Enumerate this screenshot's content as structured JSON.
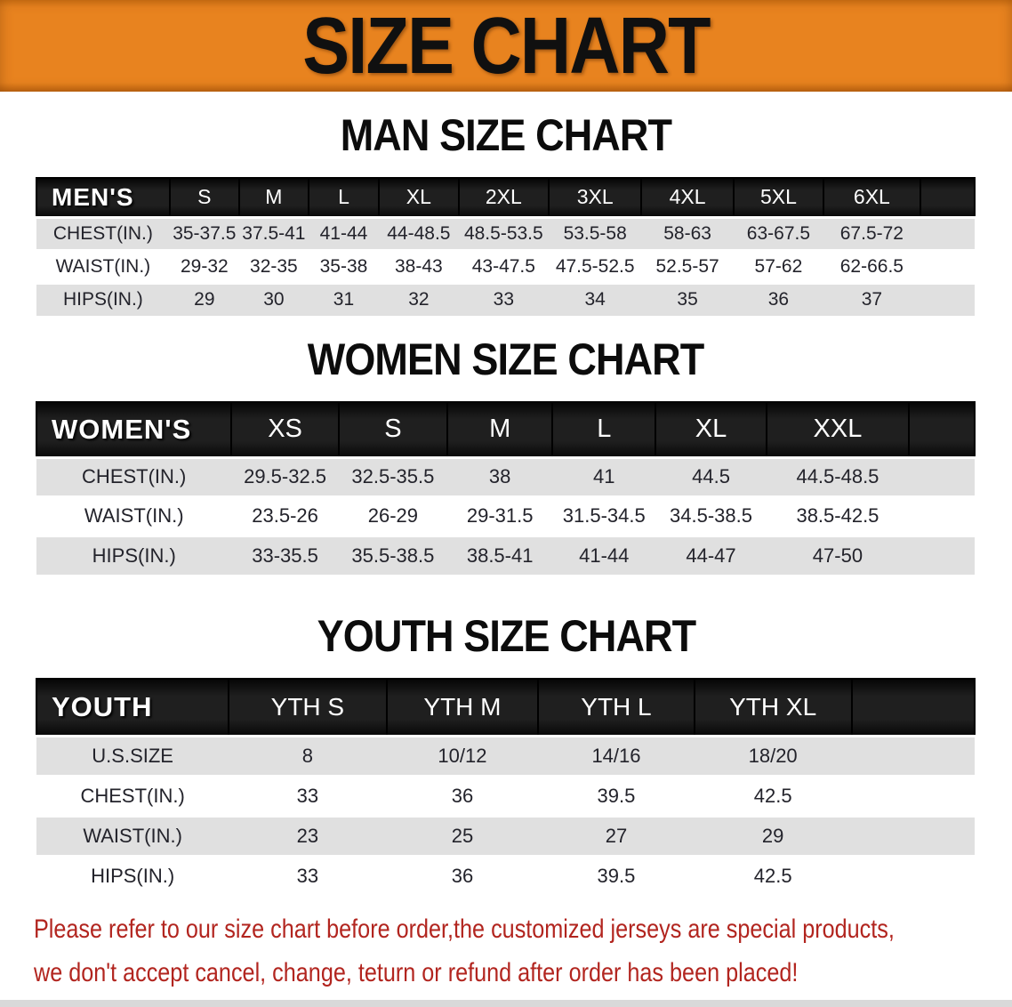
{
  "banner": {
    "title": "SIZE CHART"
  },
  "colors": {
    "banner_orange": "#E8831F",
    "header_black": "#1F1F1F",
    "row_gray": "#E0E0E0",
    "note_red": "#B2251F"
  },
  "sections": [
    {
      "heading": "MAN SIZE CHART",
      "table": {
        "label": "MEN'S",
        "sizes": [
          "S",
          "M",
          "L",
          "XL",
          "2XL",
          "3XL",
          "4XL",
          "5XL",
          "6XL"
        ],
        "rows": [
          {
            "label": "CHEST(IN.)",
            "values": [
              "35-37.5",
              "37.5-41",
              "41-44",
              "44-48.5",
              "48.5-53.5",
              "53.5-58",
              "58-63",
              "63-67.5",
              "67.5-72"
            ]
          },
          {
            "label": "WAIST(IN.)",
            "values": [
              "29-32",
              "32-35",
              "35-38",
              "38-43",
              "43-47.5",
              "47.5-52.5",
              "52.5-57",
              "57-62",
              "62-66.5"
            ]
          },
          {
            "label": "HIPS(IN.)",
            "values": [
              "29",
              "30",
              "31",
              "32",
              "33",
              "34",
              "35",
              "36",
              "37"
            ]
          }
        ]
      }
    },
    {
      "heading": "WOMEN SIZE CHART",
      "table": {
        "label": "WOMEN'S",
        "sizes": [
          "XS",
          "S",
          "M",
          "L",
          "XL",
          "XXL"
        ],
        "rows": [
          {
            "label": "CHEST(IN.)",
            "values": [
              "29.5-32.5",
              "32.5-35.5",
              "38",
              "41",
              "44.5",
              "44.5-48.5"
            ]
          },
          {
            "label": "WAIST(IN.)",
            "values": [
              "23.5-26",
              "26-29",
              "29-31.5",
              "31.5-34.5",
              "34.5-38.5",
              "38.5-42.5"
            ]
          },
          {
            "label": "HIPS(IN.)",
            "values": [
              "33-35.5",
              "35.5-38.5",
              "38.5-41",
              "41-44",
              "44-47",
              "47-50"
            ]
          }
        ]
      }
    },
    {
      "heading": "YOUTH SIZE CHART",
      "table": {
        "label": "YOUTH",
        "sizes": [
          "YTH S",
          "YTH M",
          "YTH L",
          "YTH XL"
        ],
        "rows": [
          {
            "label": "U.S.SIZE",
            "values": [
              "8",
              "10/12",
              "14/16",
              "18/20"
            ]
          },
          {
            "label": "CHEST(IN.)",
            "values": [
              "33",
              "36",
              "39.5",
              "42.5"
            ]
          },
          {
            "label": "WAIST(IN.)",
            "values": [
              "23",
              "25",
              "27",
              "29"
            ]
          },
          {
            "label": "HIPS(IN.)",
            "values": [
              "33",
              "36",
              "39.5",
              "42.5"
            ]
          }
        ]
      }
    }
  ],
  "note": {
    "line1": "Please refer to our size chart before order,the customized jerseys are special products,",
    "line2": "we don't accept cancel, change, teturn or refund after order has been placed!"
  }
}
